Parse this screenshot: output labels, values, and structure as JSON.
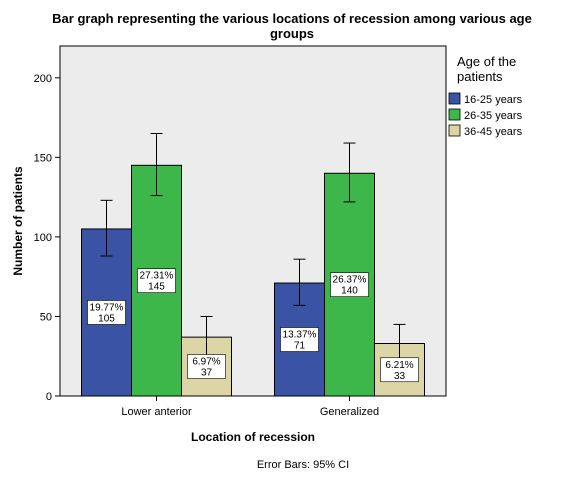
{
  "chart_data": {
    "type": "bar",
    "title_line1": "Bar graph representing the various locations of recession among various age",
    "title_line2": "groups",
    "xlabel": "Location of recession",
    "ylabel": "Number of patients",
    "ylim": [
      0,
      220
    ],
    "yticks": [
      "0",
      "50",
      "100",
      "150",
      "200"
    ],
    "categories": [
      "Lower anterior",
      "Generalized"
    ],
    "legend_title_line1": "Age of the",
    "legend_title_line2": "patients",
    "legend_position": "right",
    "grid": false,
    "series": [
      {
        "name": "16-25 years",
        "color": "#3a53a4",
        "values": [
          105,
          71
        ],
        "pct_labels": [
          "19.77%",
          "13.37%"
        ],
        "count_labels": [
          "105",
          "71"
        ],
        "error_low": [
          88,
          57
        ],
        "error_high": [
          123,
          86
        ]
      },
      {
        "name": "26-35 years",
        "color": "#3db64a",
        "values": [
          145,
          140
        ],
        "pct_labels": [
          "27.31%",
          "26.37%"
        ],
        "count_labels": [
          "145",
          "140"
        ],
        "error_low": [
          126,
          122
        ],
        "error_high": [
          165,
          159
        ]
      },
      {
        "name": "36-45 years",
        "color": "#dcd6a6",
        "values": [
          37,
          33
        ],
        "pct_labels": [
          "6.97%",
          "6.21%"
        ],
        "count_labels": [
          "37",
          "33"
        ],
        "error_low": [
          25,
          22
        ],
        "error_high": [
          50,
          45
        ]
      }
    ],
    "plot_background": "#ececec",
    "footnote": "Error Bars: 95% CI"
  }
}
